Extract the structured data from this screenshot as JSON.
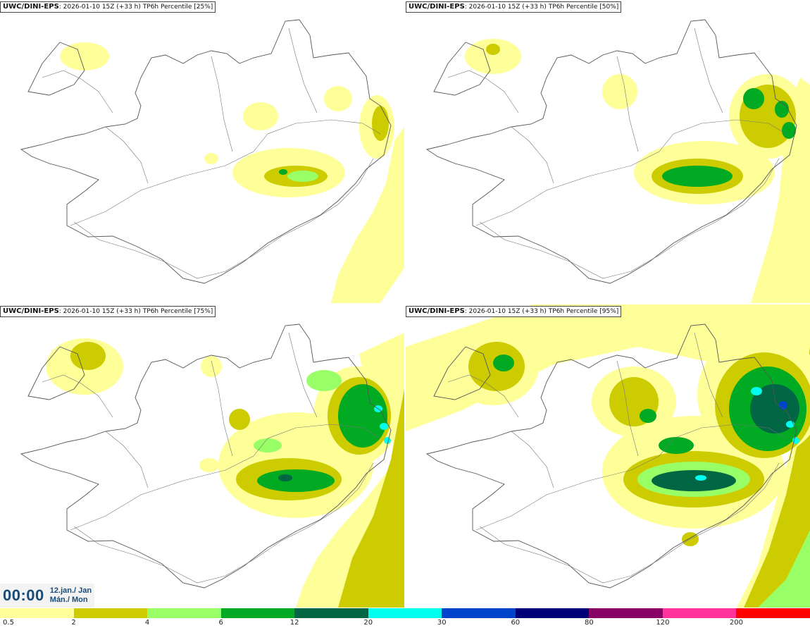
{
  "panels": [
    {
      "model": "UWC/DINI-EPS",
      "meta": ": 2026-01-10 15Z (+33 h)",
      "product": "TP6h Percentile [25%]",
      "level": 0
    },
    {
      "model": "UWC/DINI-EPS",
      "meta": ": 2026-01-10 15Z (+33 h)",
      "product": "TP6h Percentile [50%]",
      "level": 1
    },
    {
      "model": "UWC/DINI-EPS",
      "meta": ": 2026-01-10 15Z (+33 h)",
      "product": "TP6h Percentile [75%]",
      "level": 2
    },
    {
      "model": "UWC/DINI-EPS",
      "meta": ": 2026-01-10 15Z (+33 h)",
      "product": "TP6h Percentile [95%]",
      "level": 3
    }
  ],
  "clock": {
    "time": "00:00",
    "date_line1": "12.jan./ Jan",
    "date_line2": "Mán./ Mon"
  },
  "legend": {
    "colors": [
      "#ffff99",
      "#cccc00",
      "#99ff66",
      "#00aa22",
      "#006644",
      "#00ffee",
      "#0044cc",
      "#000077",
      "#880066",
      "#ff3399",
      "#ff0000"
    ],
    "ticks": [
      "0.5",
      "2",
      "4",
      "6",
      "12",
      "20",
      "30",
      "60",
      "80",
      "120",
      "200"
    ]
  }
}
